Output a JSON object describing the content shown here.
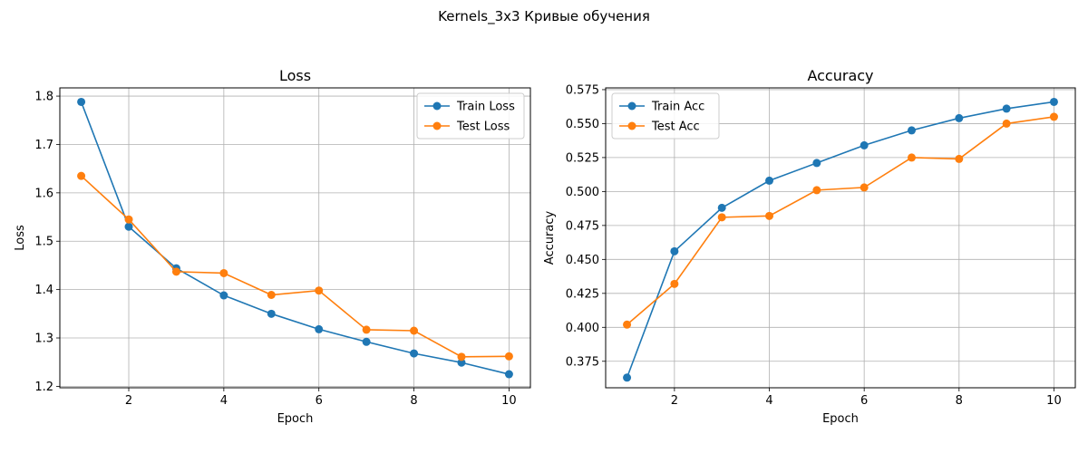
{
  "figure": {
    "suptitle": "Kernels_3x3 Кривые обучения"
  },
  "colors": {
    "train": "#1f77b4",
    "test": "#ff7f0e",
    "grid": "#b0b0b0",
    "axes": "#000000"
  },
  "chart_data": [
    {
      "type": "line",
      "title": "Loss",
      "xlabel": "Epoch",
      "ylabel": "Loss",
      "xlim": [
        0.55,
        10.45
      ],
      "ylim": [
        1.197,
        1.817
      ],
      "xticks": [
        2,
        4,
        6,
        8,
        10
      ],
      "yticks": [
        1.2,
        1.3,
        1.4,
        1.5,
        1.6,
        1.7,
        1.8
      ],
      "ytick_labels": [
        "1.2",
        "1.3",
        "1.4",
        "1.5",
        "1.6",
        "1.7",
        "1.8"
      ],
      "grid": true,
      "legend": "top-right",
      "x": [
        1,
        2,
        3,
        4,
        5,
        6,
        7,
        8,
        9,
        10
      ],
      "series": [
        {
          "name": "Train Loss",
          "color_key": "train",
          "marker": "circle",
          "values": [
            1.788,
            1.53,
            1.444,
            1.388,
            1.35,
            1.318,
            1.292,
            1.268,
            1.249,
            1.225
          ]
        },
        {
          "name": "Test Loss",
          "color_key": "test",
          "marker": "circle",
          "values": [
            1.635,
            1.545,
            1.437,
            1.434,
            1.389,
            1.398,
            1.317,
            1.315,
            1.261,
            1.262
          ]
        }
      ]
    },
    {
      "type": "line",
      "title": "Accuracy",
      "xlabel": "Epoch",
      "ylabel": "Accuracy",
      "xlim": [
        0.55,
        10.45
      ],
      "ylim": [
        0.3555,
        0.5763
      ],
      "xticks": [
        2,
        4,
        6,
        8,
        10
      ],
      "yticks": [
        0.375,
        0.4,
        0.425,
        0.45,
        0.475,
        0.5,
        0.525,
        0.55,
        0.575
      ],
      "ytick_labels": [
        "0.375",
        "0.400",
        "0.425",
        "0.450",
        "0.475",
        "0.500",
        "0.525",
        "0.550",
        "0.575"
      ],
      "grid": true,
      "legend": "top-left",
      "x": [
        1,
        2,
        3,
        4,
        5,
        6,
        7,
        8,
        9,
        10
      ],
      "series": [
        {
          "name": "Train Acc",
          "color_key": "train",
          "marker": "circle",
          "values": [
            0.363,
            0.456,
            0.488,
            0.508,
            0.521,
            0.534,
            0.545,
            0.554,
            0.561,
            0.566
          ]
        },
        {
          "name": "Test Acc",
          "color_key": "test",
          "marker": "circle",
          "values": [
            0.402,
            0.432,
            0.481,
            0.482,
            0.501,
            0.503,
            0.525,
            0.524,
            0.55,
            0.555
          ]
        }
      ]
    }
  ]
}
